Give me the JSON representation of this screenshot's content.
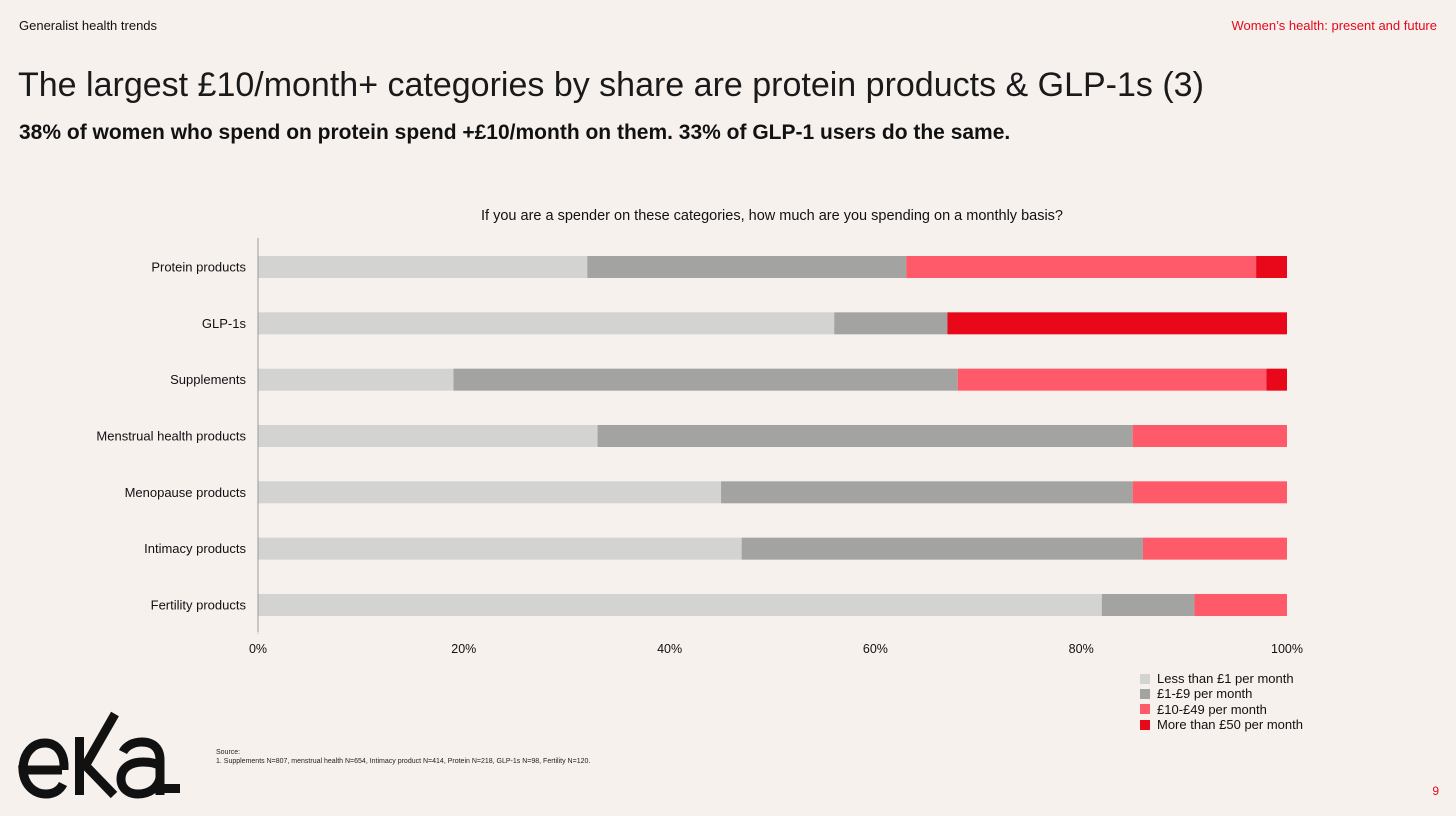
{
  "header": {
    "section": "Generalist health trends",
    "report_title": "Women’s health: present and future"
  },
  "headline": "The largest £10/month+ categories by share are protein products & GLP-1s (3)",
  "subheadline": "38% of women who spend on protein spend +£10/month on them. 33% of GLP-1 users do the same.",
  "chart_data": {
    "type": "bar",
    "orientation": "horizontal",
    "stacked": true,
    "title": "If you are a spender on these categories, how much are you spending on a monthly basis?",
    "categories": [
      "Protein products",
      "GLP-1s",
      "Supplements",
      "Menstrual health products",
      "Menopause products",
      "Intimacy products",
      "Fertility products"
    ],
    "series": [
      {
        "name": "Less than £1 per month",
        "color": "#D3D3D1",
        "values": [
          32,
          56,
          19,
          33,
          45,
          47,
          82
        ]
      },
      {
        "name": "£1-£9 per month",
        "color": "#A3A3A2",
        "values": [
          31,
          11,
          49,
          52,
          40,
          39,
          9
        ]
      },
      {
        "name": "£10-£49 per month",
        "color": "#FF5A6A",
        "values": [
          34,
          0,
          30,
          15,
          15,
          14,
          9
        ]
      },
      {
        "name": "More than £50 per month",
        "color": "#E8081A",
        "values": [
          3,
          33,
          2,
          0,
          0,
          0,
          0
        ]
      }
    ],
    "xlim": [
      0,
      100
    ],
    "xticks": [
      "0%",
      "20%",
      "40%",
      "60%",
      "80%",
      "100%"
    ],
    "xlabel": "",
    "ylabel": "",
    "grid": false,
    "legend": "bottom-right"
  },
  "logo": {
    "text": "eka"
  },
  "source": {
    "label": "Source:",
    "note": "1.    Supplements N=807, menstrual health N=654, Intimacy product N=414, Protein N=218, GLP-1s N=98, Fertility N=120."
  },
  "page_number": "9"
}
